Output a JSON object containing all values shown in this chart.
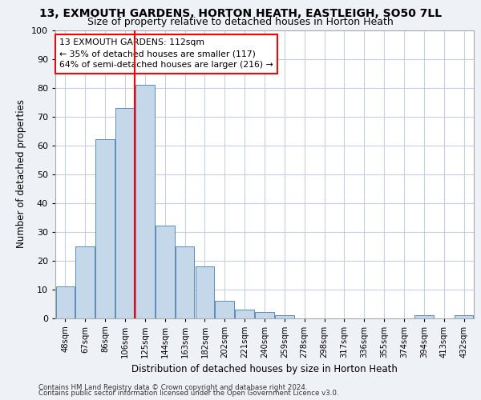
{
  "title1": "13, EXMOUTH GARDENS, HORTON HEATH, EASTLEIGH, SO50 7LL",
  "title2": "Size of property relative to detached houses in Horton Heath",
  "xlabel": "Distribution of detached houses by size in Horton Heath",
  "ylabel": "Number of detached properties",
  "categories": [
    "48sqm",
    "67sqm",
    "86sqm",
    "106sqm",
    "125sqm",
    "144sqm",
    "163sqm",
    "182sqm",
    "202sqm",
    "221sqm",
    "240sqm",
    "259sqm",
    "278sqm",
    "298sqm",
    "317sqm",
    "336sqm",
    "355sqm",
    "374sqm",
    "394sqm",
    "413sqm",
    "432sqm"
  ],
  "values": [
    11,
    25,
    62,
    73,
    81,
    32,
    25,
    18,
    6,
    3,
    2,
    1,
    0,
    0,
    0,
    0,
    0,
    0,
    1,
    0,
    1
  ],
  "bar_color": "#c5d8ea",
  "bar_edge_color": "#5b8db8",
  "red_line_x": 3.5,
  "annotation_line1": "13 EXMOUTH GARDENS: 112sqm",
  "annotation_line2": "← 35% of detached houses are smaller (117)",
  "annotation_line3": "64% of semi-detached houses are larger (216) →",
  "annotation_box_color": "white",
  "annotation_box_edge": "red",
  "ylim": [
    0,
    100
  ],
  "yticks": [
    0,
    10,
    20,
    30,
    40,
    50,
    60,
    70,
    80,
    90,
    100
  ],
  "footer1": "Contains HM Land Registry data © Crown copyright and database right 2024.",
  "footer2": "Contains public sector information licensed under the Open Government Licence v3.0.",
  "bg_color": "#eef2f7",
  "plot_bg_color": "#ffffff",
  "grid_color": "#c5cfe0",
  "title1_fontsize": 10,
  "title2_fontsize": 9
}
